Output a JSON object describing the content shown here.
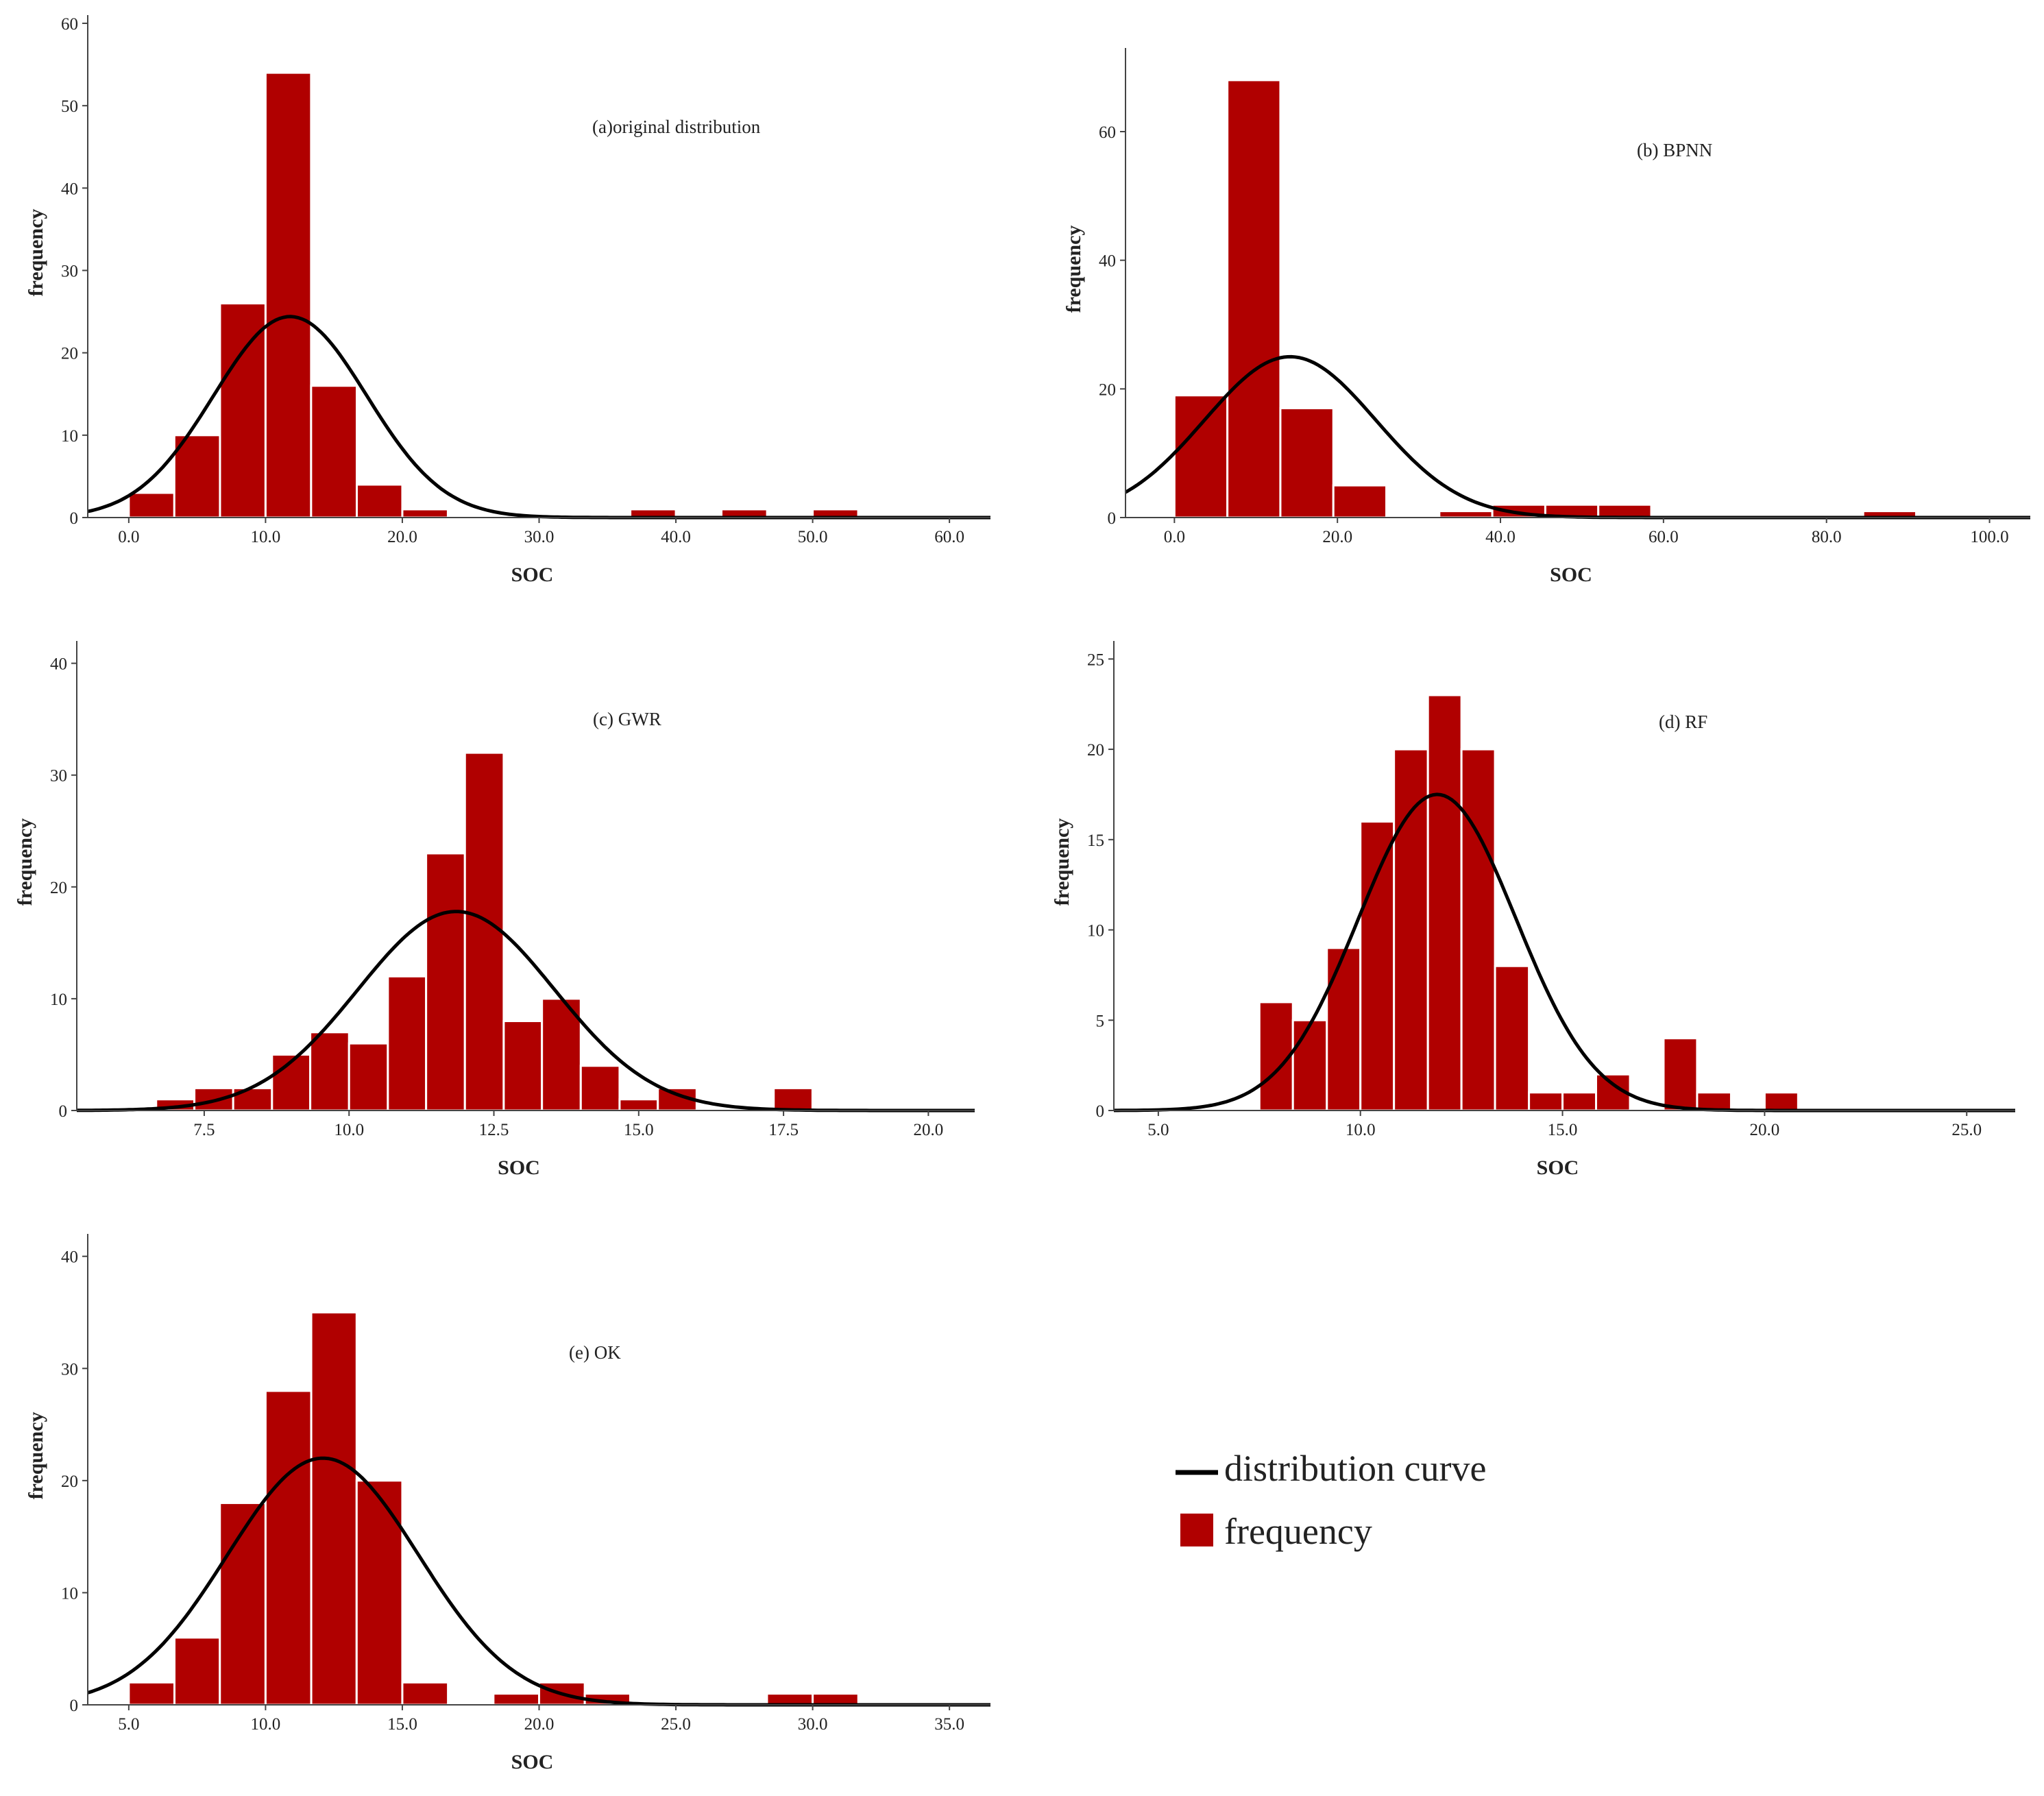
{
  "colors": {
    "bar": "#b00000",
    "curve": "#000000"
  },
  "legend": {
    "curve_label": "distribution curve",
    "bar_label": "frequency"
  },
  "chart_data": [
    {
      "id": "a",
      "type": "histogram",
      "title": "(a)original distribution",
      "xlabel": "SOC",
      "ylabel": "frequency",
      "xlim": [
        -3,
        63
      ],
      "ylim": [
        0,
        61
      ],
      "xticks": [
        0,
        10,
        20,
        30,
        40,
        50,
        60
      ],
      "xtick_labels": [
        "0.0",
        "10.0",
        "20.0",
        "30.0",
        "40.0",
        "50.0",
        "60.0"
      ],
      "yticks": [
        0,
        10,
        20,
        30,
        40,
        50,
        60
      ],
      "bins": [
        {
          "x0": 0,
          "x1": 3.33,
          "count": 3
        },
        {
          "x0": 3.33,
          "x1": 6.67,
          "count": 10
        },
        {
          "x0": 6.67,
          "x1": 10,
          "count": 26
        },
        {
          "x0": 10,
          "x1": 13.33,
          "count": 54
        },
        {
          "x0": 13.33,
          "x1": 16.67,
          "count": 16
        },
        {
          "x0": 16.67,
          "x1": 20,
          "count": 4
        },
        {
          "x0": 20,
          "x1": 23.33,
          "count": 1
        },
        {
          "x0": 36.67,
          "x1": 40,
          "count": 1
        },
        {
          "x0": 43.33,
          "x1": 46.67,
          "count": 1
        },
        {
          "x0": 50,
          "x1": 53.33,
          "count": 1
        }
      ],
      "curve": {
        "mean": 11.8,
        "sd": 5.6,
        "peak": 24.4
      }
    },
    {
      "id": "b",
      "type": "histogram",
      "title": "(b) BPNN",
      "xlabel": "SOC",
      "ylabel": "frequency",
      "xlim": [
        -6,
        105
      ],
      "ylim": [
        0,
        73
      ],
      "xticks": [
        0,
        20,
        40,
        60,
        80,
        100
      ],
      "xtick_labels": [
        "0.0",
        "20.0",
        "40.0",
        "60.0",
        "80.0",
        "100.0"
      ],
      "yticks": [
        0,
        20,
        40,
        60
      ],
      "bins": [
        {
          "x0": 0,
          "x1": 6.5,
          "count": 19
        },
        {
          "x0": 6.5,
          "x1": 13,
          "count": 68
        },
        {
          "x0": 13,
          "x1": 19.5,
          "count": 17
        },
        {
          "x0": 19.5,
          "x1": 26,
          "count": 5
        },
        {
          "x0": 32.5,
          "x1": 39,
          "count": 1
        },
        {
          "x0": 39,
          "x1": 45.5,
          "count": 2
        },
        {
          "x0": 45.5,
          "x1": 52,
          "count": 2
        },
        {
          "x0": 52,
          "x1": 58.5,
          "count": 2
        },
        {
          "x0": 84.5,
          "x1": 91,
          "count": 1
        }
      ],
      "curve": {
        "mean": 14.2,
        "sd": 10.5,
        "peak": 25
      }
    },
    {
      "id": "c",
      "type": "histogram",
      "title": "(c) GWR",
      "xlabel": "SOC",
      "ylabel": "frequency",
      "xlim": [
        5.3,
        20.8
      ],
      "ylim": [
        0,
        42
      ],
      "xticks": [
        7.5,
        10,
        12.5,
        15,
        17.5,
        20
      ],
      "xtick_labels": [
        "7.5",
        "10.0",
        "12.5",
        "15.0",
        "17.5",
        "20.0"
      ],
      "yticks": [
        0,
        10,
        20,
        30,
        40
      ],
      "bins": [
        {
          "x0": 6.67,
          "x1": 7.33,
          "count": 1
        },
        {
          "x0": 7.33,
          "x1": 8.0,
          "count": 2
        },
        {
          "x0": 8.0,
          "x1": 8.67,
          "count": 2
        },
        {
          "x0": 8.67,
          "x1": 9.33,
          "count": 5
        },
        {
          "x0": 9.33,
          "x1": 10.0,
          "count": 7
        },
        {
          "x0": 10.0,
          "x1": 10.67,
          "count": 6
        },
        {
          "x0": 10.67,
          "x1": 11.33,
          "count": 12
        },
        {
          "x0": 11.33,
          "x1": 12.0,
          "count": 23
        },
        {
          "x0": 12.0,
          "x1": 12.67,
          "count": 32
        },
        {
          "x0": 12.67,
          "x1": 13.33,
          "count": 8
        },
        {
          "x0": 13.33,
          "x1": 14.0,
          "count": 10
        },
        {
          "x0": 14.0,
          "x1": 14.67,
          "count": 4
        },
        {
          "x0": 14.67,
          "x1": 15.33,
          "count": 1
        },
        {
          "x0": 15.33,
          "x1": 16.0,
          "count": 2
        },
        {
          "x0": 17.33,
          "x1": 18.0,
          "count": 2
        }
      ],
      "curve": {
        "mean": 11.85,
        "sd": 1.7,
        "peak": 17.8
      }
    },
    {
      "id": "d",
      "type": "histogram",
      "title": "(d) RF",
      "xlabel": "SOC",
      "ylabel": "frequency",
      "xlim": [
        3.9,
        26.2
      ],
      "ylim": [
        0,
        26
      ],
      "xticks": [
        5,
        10,
        15,
        20,
        25
      ],
      "xtick_labels": [
        "5.0",
        "10.0",
        "15.0",
        "20.0",
        "25.0"
      ],
      "yticks": [
        0,
        5,
        10,
        15,
        20,
        25
      ],
      "bins": [
        {
          "x0": 7.5,
          "x1": 8.33,
          "count": 6
        },
        {
          "x0": 8.33,
          "x1": 9.17,
          "count": 5
        },
        {
          "x0": 9.17,
          "x1": 10.0,
          "count": 9
        },
        {
          "x0": 10.0,
          "x1": 10.83,
          "count": 16
        },
        {
          "x0": 10.83,
          "x1": 11.67,
          "count": 20
        },
        {
          "x0": 11.67,
          "x1": 12.5,
          "count": 23
        },
        {
          "x0": 12.5,
          "x1": 13.33,
          "count": 20
        },
        {
          "x0": 13.33,
          "x1": 14.17,
          "count": 8
        },
        {
          "x0": 14.17,
          "x1": 15.0,
          "count": 1
        },
        {
          "x0": 15.0,
          "x1": 15.83,
          "count": 1
        },
        {
          "x0": 15.83,
          "x1": 16.67,
          "count": 2
        },
        {
          "x0": 17.5,
          "x1": 18.33,
          "count": 4
        },
        {
          "x0": 18.33,
          "x1": 19.17,
          "count": 1
        },
        {
          "x0": 20.0,
          "x1": 20.83,
          "count": 1
        }
      ],
      "curve": {
        "mean": 11.9,
        "sd": 1.95,
        "peak": 17.5
      }
    },
    {
      "id": "e",
      "type": "histogram",
      "title": "(e) OK",
      "xlabel": "SOC",
      "ylabel": "frequency",
      "xlim": [
        3.5,
        36.5
      ],
      "ylim": [
        0,
        42
      ],
      "xticks": [
        5,
        10,
        15,
        20,
        25,
        30,
        35
      ],
      "xtick_labels": [
        "5.0",
        "10.0",
        "15.0",
        "20.0",
        "25.0",
        "30.0",
        "35.0"
      ],
      "yticks": [
        0,
        10,
        20,
        30,
        40
      ],
      "bins": [
        {
          "x0": 5.0,
          "x1": 6.67,
          "count": 2
        },
        {
          "x0": 6.67,
          "x1": 8.33,
          "count": 6
        },
        {
          "x0": 8.33,
          "x1": 10.0,
          "count": 18
        },
        {
          "x0": 10.0,
          "x1": 11.67,
          "count": 28
        },
        {
          "x0": 11.67,
          "x1": 13.33,
          "count": 35
        },
        {
          "x0": 13.33,
          "x1": 15.0,
          "count": 20
        },
        {
          "x0": 15.0,
          "x1": 16.67,
          "count": 2
        },
        {
          "x0": 18.33,
          "x1": 20.0,
          "count": 1
        },
        {
          "x0": 20.0,
          "x1": 21.67,
          "count": 2
        },
        {
          "x0": 21.67,
          "x1": 23.33,
          "count": 1
        },
        {
          "x0": 28.33,
          "x1": 30.0,
          "count": 1
        },
        {
          "x0": 30.0,
          "x1": 31.67,
          "count": 1
        }
      ],
      "curve": {
        "mean": 12.1,
        "sd": 3.5,
        "peak": 22
      }
    }
  ]
}
